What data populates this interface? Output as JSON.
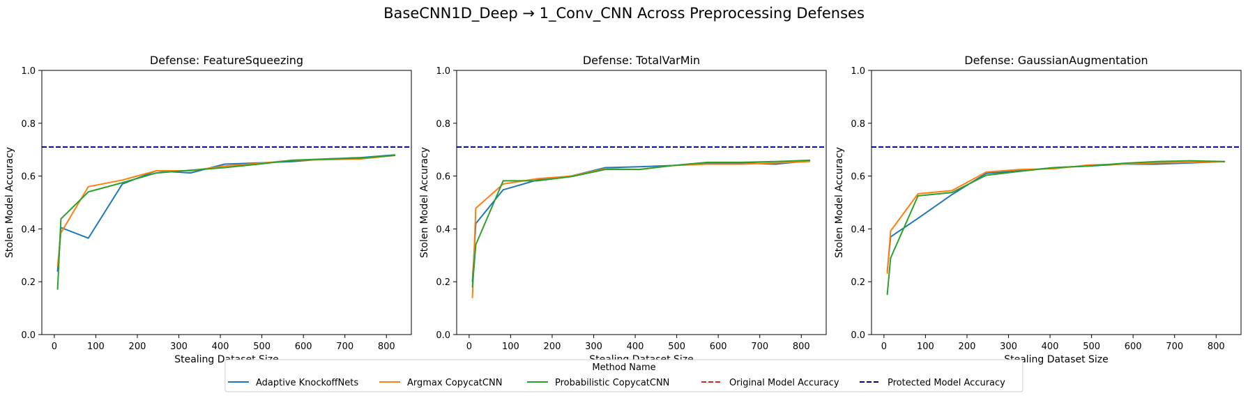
{
  "figure_title": "BaseCNN1D_Deep → 1_Conv_CNN Across Preprocessing Defenses",
  "legend": {
    "title": "Method Name",
    "entries": [
      {
        "label": "Adaptive KnockoffNets",
        "color": "#1f77b4",
        "style": "solid"
      },
      {
        "label": "Argmax CopycatCNN",
        "color": "#ff7f0e",
        "style": "solid"
      },
      {
        "label": "Probabilistic CopycatCNN",
        "color": "#2ca02c",
        "style": "solid"
      },
      {
        "label": "Original Model Accuracy",
        "color": "#d62728",
        "style": "dashed"
      },
      {
        "label": "Protected Model Accuracy",
        "color": "#00008b",
        "style": "dashed"
      }
    ]
  },
  "chart_data": [
    {
      "type": "line",
      "title": "Defense: FeatureSqueezing",
      "xlabel": "Stealing Dataset Size",
      "ylabel": "Stolen Model Accuracy",
      "xlim": [
        -30,
        860
      ],
      "ylim": [
        0.0,
        1.0
      ],
      "xticks": [
        0,
        100,
        200,
        300,
        400,
        500,
        600,
        700,
        800
      ],
      "yticks": [
        "0.0",
        "0.2",
        "0.4",
        "0.6",
        "0.8",
        "1.0"
      ],
      "hline": {
        "name": "Protected Model Accuracy",
        "y": 0.71,
        "color": "#00008b"
      },
      "series": [
        {
          "name": "Adaptive KnockoffNets",
          "color": "#1f77b4",
          "x": [
            8,
            16,
            82,
            164,
            246,
            328,
            410,
            492,
            574,
            656,
            738,
            820
          ],
          "y": [
            0.24,
            0.405,
            0.365,
            0.57,
            0.62,
            0.612,
            0.645,
            0.65,
            0.655,
            0.665,
            0.67,
            0.68
          ]
        },
        {
          "name": "Argmax CopycatCNN",
          "color": "#ff7f0e",
          "x": [
            8,
            16,
            82,
            164,
            246,
            328,
            410,
            492,
            574,
            656,
            738,
            820
          ],
          "y": [
            0.26,
            0.385,
            0.56,
            0.585,
            0.62,
            0.62,
            0.638,
            0.648,
            0.66,
            0.662,
            0.665,
            0.678
          ]
        },
        {
          "name": "Probabilistic CopycatCNN",
          "color": "#2ca02c",
          "x": [
            8,
            16,
            82,
            164,
            246,
            328,
            410,
            492,
            574,
            656,
            738,
            820
          ],
          "y": [
            0.172,
            0.438,
            0.54,
            0.575,
            0.612,
            0.622,
            0.632,
            0.645,
            0.66,
            0.665,
            0.668,
            0.678
          ]
        }
      ]
    },
    {
      "type": "line",
      "title": "Defense: TotalVarMin",
      "xlabel": "Stealing Dataset Size",
      "ylabel": "Stolen Model Accuracy",
      "xlim": [
        -30,
        860
      ],
      "ylim": [
        0.0,
        1.0
      ],
      "xticks": [
        0,
        100,
        200,
        300,
        400,
        500,
        600,
        700,
        800
      ],
      "yticks": [
        "0.0",
        "0.2",
        "0.4",
        "0.6",
        "0.8",
        "1.0"
      ],
      "hline": {
        "name": "Protected Model Accuracy",
        "y": 0.71,
        "color": "#00008b"
      },
      "series": [
        {
          "name": "Adaptive KnockoffNets",
          "color": "#1f77b4",
          "x": [
            8,
            16,
            82,
            164,
            246,
            328,
            410,
            492,
            574,
            656,
            738,
            820
          ],
          "y": [
            0.2,
            0.42,
            0.548,
            0.585,
            0.6,
            0.632,
            0.635,
            0.64,
            0.648,
            0.65,
            0.645,
            0.658
          ]
        },
        {
          "name": "Argmax CopycatCNN",
          "color": "#ff7f0e",
          "x": [
            8,
            16,
            82,
            164,
            246,
            328,
            410,
            492,
            574,
            656,
            738,
            820
          ],
          "y": [
            0.14,
            0.478,
            0.57,
            0.59,
            0.6,
            0.628,
            0.625,
            0.64,
            0.645,
            0.645,
            0.65,
            0.655
          ]
        },
        {
          "name": "Probabilistic CopycatCNN",
          "color": "#2ca02c",
          "x": [
            8,
            16,
            82,
            164,
            246,
            328,
            410,
            492,
            574,
            656,
            738,
            820
          ],
          "y": [
            0.18,
            0.34,
            0.582,
            0.582,
            0.598,
            0.625,
            0.625,
            0.64,
            0.652,
            0.652,
            0.655,
            0.66
          ]
        }
      ]
    },
    {
      "type": "line",
      "title": "Defense: GaussianAugmentation",
      "xlabel": "Stealing Dataset Size",
      "ylabel": "Stolen Model Accuracy",
      "xlim": [
        -30,
        860
      ],
      "ylim": [
        0.0,
        1.0
      ],
      "xticks": [
        0,
        100,
        200,
        300,
        400,
        500,
        600,
        700,
        800
      ],
      "yticks": [
        "0.0",
        "0.2",
        "0.4",
        "0.6",
        "0.8",
        "1.0"
      ],
      "hline": {
        "name": "Protected Model Accuracy",
        "y": 0.71,
        "color": "#00008b"
      },
      "series": [
        {
          "name": "Adaptive KnockoffNets",
          "color": "#1f77b4",
          "x": [
            8,
            16,
            82,
            164,
            246,
            328,
            410,
            492,
            574,
            656,
            738,
            820
          ],
          "y": [
            0.24,
            0.37,
            0.44,
            0.53,
            0.61,
            0.62,
            0.632,
            0.638,
            0.645,
            0.645,
            0.65,
            0.655
          ]
        },
        {
          "name": "Argmax CopycatCNN",
          "color": "#ff7f0e",
          "x": [
            8,
            16,
            82,
            164,
            246,
            328,
            410,
            492,
            574,
            656,
            738,
            820
          ],
          "y": [
            0.232,
            0.392,
            0.533,
            0.545,
            0.615,
            0.625,
            0.628,
            0.642,
            0.645,
            0.65,
            0.652,
            0.655
          ]
        },
        {
          "name": "Probabilistic CopycatCNN",
          "color": "#2ca02c",
          "x": [
            8,
            16,
            82,
            164,
            246,
            328,
            410,
            492,
            574,
            656,
            738,
            820
          ],
          "y": [
            0.152,
            0.29,
            0.525,
            0.538,
            0.603,
            0.618,
            0.632,
            0.638,
            0.648,
            0.655,
            0.658,
            0.655
          ]
        }
      ]
    }
  ]
}
